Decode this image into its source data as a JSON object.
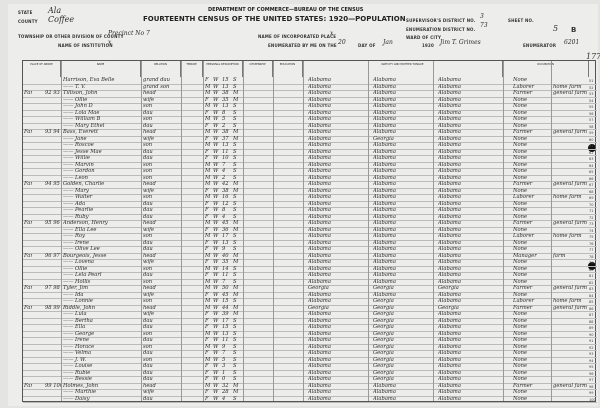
{
  "header": {
    "department": "DEPARTMENT OF COMMERCE—BUREAU OF THE CENSUS",
    "title": "FOURTEENTH CENSUS OF THE UNITED STATES: 1920—POPULATION",
    "state_label": "STATE",
    "state": "Ala",
    "county_label": "COUNTY",
    "county": "Coffee",
    "township_label": "TOWNSHIP OR OTHER DIVISION OF COUNTY",
    "township": "Precinct No 7",
    "institution_label": "NAME OF INSTITUTION",
    "institution": "x",
    "incorporated_label": "NAME OF INCORPORATED PLACE",
    "incorporated": "x",
    "enumerated_label": "ENUMERATED BY ME ON THE",
    "enum_day": "20",
    "day_of_label": "DAY OF",
    "enum_month": "Jan",
    "year": "1920",
    "enumerator": "Jim T. Grimes",
    "enumerator_label": "ENUMERATOR",
    "supervisor_label": "SUPERVISOR'S DISTRICT NO.",
    "supervisor": "3",
    "ed_label": "ENUMERATION DISTRICT NO.",
    "ed": "73",
    "ward_label": "WARD OF CITY",
    "sheet_label": "SHEET NO.",
    "sheet": "5",
    "sheet_side": "B",
    "stamp": "6201",
    "stamp2": "1778"
  },
  "columns": {
    "place": "PLACE OF ABODE",
    "name": "NAME",
    "relation": "RELATION",
    "tenure": "TENURE",
    "personal": "PERSONAL DESCRIPTION",
    "citizenship": "CITIZENSHIP",
    "education": "EDUCATION",
    "nativity": "NATIVITY AND MOTHER TONGUE",
    "occupation": "OCCUPATION"
  },
  "rows": [
    [
      "",
      "",
      "Harrison, Eva Belle",
      "grand dau",
      "F",
      "W",
      "15",
      "S",
      "Alabama",
      "Alabama",
      "Alabama",
      "None",
      ""
    ],
    [
      "",
      "",
      "—— T. V.",
      "grand son",
      "M",
      "W",
      "13",
      "S",
      "Alabama",
      "Alabama",
      "Alabama",
      "Laborer",
      "home farm"
    ],
    [
      "Far",
      "92 93",
      "Tillison, John",
      "head",
      "M",
      "W",
      "38",
      "M",
      "Alabama",
      "Alabama",
      "Alabama",
      "Farmer",
      "general farm"
    ],
    [
      "",
      "",
      "—— Ollie",
      "wife",
      "F",
      "W",
      "35",
      "M",
      "Alabama",
      "Alabama",
      "Alabama",
      "None",
      ""
    ],
    [
      "",
      "",
      "—— John D",
      "son",
      "M",
      "W",
      "13",
      "S",
      "Alabama",
      "Alabama",
      "Alabama",
      "None",
      ""
    ],
    [
      "",
      "",
      "—— Lola Mae",
      "dau",
      "F",
      "W",
      "8",
      "S",
      "Alabama",
      "Alabama",
      "Alabama",
      "None",
      ""
    ],
    [
      "",
      "",
      "—— William B",
      "son",
      "M",
      "W",
      "5",
      "S",
      "Alabama",
      "Alabama",
      "Alabama",
      "None",
      ""
    ],
    [
      "",
      "",
      "—— Mary Ethel",
      "dau",
      "F",
      "W",
      "2",
      "S",
      "Alabama",
      "Alabama",
      "Alabama",
      "None",
      ""
    ],
    [
      "Far",
      "93 94",
      "Bass, Everett",
      "head",
      "M",
      "W",
      "38",
      "M",
      "Alabama",
      "Alabama",
      "Alabama",
      "Farmer",
      "general farm"
    ],
    [
      "",
      "",
      "—— Jane",
      "wife",
      "F",
      "W",
      "37",
      "M",
      "Alabama",
      "Georgia",
      "Alabama",
      "None",
      ""
    ],
    [
      "",
      "",
      "—— Roscoe",
      "son",
      "M",
      "W",
      "13",
      "S",
      "Alabama",
      "Alabama",
      "Alabama",
      "None",
      ""
    ],
    [
      "",
      "",
      "—— Jesse Mae",
      "dau",
      "F",
      "W",
      "11",
      "S",
      "Alabama",
      "Alabama",
      "Alabama",
      "None",
      ""
    ],
    [
      "",
      "",
      "—— Willie",
      "dau",
      "F",
      "W",
      "10",
      "S",
      "Alabama",
      "Alabama",
      "Alabama",
      "None",
      ""
    ],
    [
      "",
      "",
      "—— Marvin",
      "son",
      "M",
      "W",
      "7",
      "S",
      "Alabama",
      "Alabama",
      "Alabama",
      "None",
      ""
    ],
    [
      "",
      "",
      "—— Gordon",
      "son",
      "M",
      "W",
      "4",
      "S",
      "Alabama",
      "Alabama",
      "Alabama",
      "None",
      ""
    ],
    [
      "",
      "",
      "—— Leon",
      "son",
      "M",
      "W",
      "2",
      "S",
      "Alabama",
      "Alabama",
      "Alabama",
      "None",
      ""
    ],
    [
      "Far",
      "94 95",
      "Golden, Charlie",
      "head",
      "M",
      "W",
      "42",
      "M",
      "Alabama",
      "Alabama",
      "Alabama",
      "Farmer",
      "general farm"
    ],
    [
      "",
      "",
      "—— Mary",
      "wife",
      "F",
      "W",
      "38",
      "M",
      "Alabama",
      "Alabama",
      "Alabama",
      "None",
      ""
    ],
    [
      "",
      "",
      "—— Walter",
      "son",
      "M",
      "W",
      "16",
      "S",
      "Alabama",
      "Alabama",
      "Alabama",
      "Laborer",
      "home farm"
    ],
    [
      "",
      "",
      "—— Ada",
      "dau",
      "F",
      "W",
      "12",
      "S",
      "Alabama",
      "Alabama",
      "Alabama",
      "None",
      ""
    ],
    [
      "",
      "",
      "—— Pearlie",
      "dau",
      "F",
      "W",
      "8",
      "S",
      "Alabama",
      "Alabama",
      "Alabama",
      "None",
      ""
    ],
    [
      "",
      "",
      "—— Ruby",
      "dau",
      "F",
      "W",
      "4",
      "S",
      "Alabama",
      "Alabama",
      "Alabama",
      "None",
      ""
    ],
    [
      "Far",
      "95 96",
      "Anderson, Henry",
      "head",
      "M",
      "W",
      "45",
      "M",
      "Alabama",
      "Alabama",
      "Alabama",
      "Farmer",
      "general farm"
    ],
    [
      "",
      "",
      "—— Ella Lee",
      "wife",
      "F",
      "W",
      "36",
      "M",
      "Alabama",
      "Alabama",
      "Alabama",
      "None",
      ""
    ],
    [
      "",
      "",
      "—— Roy",
      "son",
      "M",
      "W",
      "17",
      "S",
      "Alabama",
      "Alabama",
      "Alabama",
      "Laborer",
      "home farm"
    ],
    [
      "",
      "",
      "—— Irene",
      "dau",
      "F",
      "W",
      "13",
      "S",
      "Alabama",
      "Alabama",
      "Alabama",
      "None",
      ""
    ],
    [
      "",
      "",
      "—— Olive Lee",
      "dau",
      "F",
      "W",
      "9",
      "S",
      "Alabama",
      "Alabama",
      "Alabama",
      "None",
      ""
    ],
    [
      "Far",
      "96 97",
      "Bourgeois, Jesse",
      "head",
      "M",
      "W",
      "40",
      "M",
      "Alabama",
      "Alabama",
      "Alabama",
      "Manager",
      "farm"
    ],
    [
      "",
      "",
      "—— Lovena",
      "wife",
      "F",
      "W",
      "35",
      "M",
      "Alabama",
      "Alabama",
      "Alabama",
      "None",
      ""
    ],
    [
      "",
      "",
      "—— Ollie",
      "son",
      "M",
      "W",
      "14",
      "S",
      "Alabama",
      "Alabama",
      "Alabama",
      "None",
      ""
    ],
    [
      "",
      "",
      "—— Lela Pearl",
      "dau",
      "F",
      "W",
      "11",
      "S",
      "Alabama",
      "Alabama",
      "Alabama",
      "None",
      ""
    ],
    [
      "",
      "",
      "—— Hollis",
      "son",
      "M",
      "W",
      "7",
      "S",
      "Alabama",
      "Alabama",
      "Alabama",
      "None",
      ""
    ],
    [
      "Far",
      "97 98",
      "Tyler, Jim",
      "head",
      "M",
      "W",
      "50",
      "M",
      "Georgia",
      "Georgia",
      "Georgia",
      "Farmer",
      "general farm"
    ],
    [
      "",
      "",
      "—— Ida",
      "wife",
      "F",
      "W",
      "45",
      "M",
      "Alabama",
      "Alabama",
      "Alabama",
      "None",
      ""
    ],
    [
      "",
      "",
      "—— Lonnie",
      "son",
      "M",
      "W",
      "15",
      "S",
      "Alabama",
      "Georgia",
      "Alabama",
      "Laborer",
      "home farm"
    ],
    [
      "Far",
      "98 99",
      "Riddle, John",
      "head",
      "M",
      "W",
      "44",
      "M",
      "Georgia",
      "Georgia",
      "Georgia",
      "Farmer",
      "general farm"
    ],
    [
      "",
      "",
      "—— Lula",
      "wife",
      "F",
      "W",
      "39",
      "M",
      "Alabama",
      "Georgia",
      "Alabama",
      "None",
      ""
    ],
    [
      "",
      "",
      "—— Bertha",
      "dau",
      "F",
      "W",
      "17",
      "S",
      "Alabama",
      "Georgia",
      "Alabama",
      "None",
      ""
    ],
    [
      "",
      "",
      "—— Ella",
      "dau",
      "F",
      "W",
      "15",
      "S",
      "Alabama",
      "Georgia",
      "Alabama",
      "None",
      ""
    ],
    [
      "",
      "",
      "—— George",
      "son",
      "M",
      "W",
      "13",
      "S",
      "Alabama",
      "Georgia",
      "Alabama",
      "None",
      ""
    ],
    [
      "",
      "",
      "—— Irene",
      "dau",
      "F",
      "W",
      "11",
      "S",
      "Alabama",
      "Georgia",
      "Alabama",
      "None",
      ""
    ],
    [
      "",
      "",
      "—— Horace",
      "son",
      "M",
      "W",
      "9",
      "S",
      "Alabama",
      "Georgia",
      "Alabama",
      "None",
      ""
    ],
    [
      "",
      "",
      "—— Velma",
      "dau",
      "F",
      "W",
      "7",
      "S",
      "Alabama",
      "Georgia",
      "Alabama",
      "None",
      ""
    ],
    [
      "",
      "",
      "—— J. W.",
      "son",
      "M",
      "W",
      "5",
      "S",
      "Alabama",
      "Georgia",
      "Alabama",
      "None",
      ""
    ],
    [
      "",
      "",
      "—— Louise",
      "dau",
      "F",
      "W",
      "3",
      "S",
      "Alabama",
      "Georgia",
      "Alabama",
      "None",
      ""
    ],
    [
      "",
      "",
      "—— Rubie",
      "dau",
      "F",
      "W",
      "1",
      "S",
      "Alabama",
      "Georgia",
      "Alabama",
      "None",
      ""
    ],
    [
      "",
      "",
      "—— Bessie",
      "dau",
      "F",
      "W",
      "0",
      "S",
      "Alabama",
      "Georgia",
      "Alabama",
      "None",
      ""
    ],
    [
      "Far",
      "99 100",
      "Holmes, John",
      "head",
      "M",
      "W",
      "32",
      "M",
      "Alabama",
      "Alabama",
      "Alabama",
      "Farmer",
      "general farm"
    ],
    [
      "",
      "",
      "—— Marthie",
      "wife",
      "F",
      "W",
      "28",
      "M",
      "Alabama",
      "Alabama",
      "Alabama",
      "None",
      ""
    ],
    [
      "",
      "",
      "—— Daisy",
      "dau",
      "F",
      "W",
      "4",
      "S",
      "Alabama",
      "Alabama",
      "Alabama",
      "None",
      ""
    ]
  ]
}
